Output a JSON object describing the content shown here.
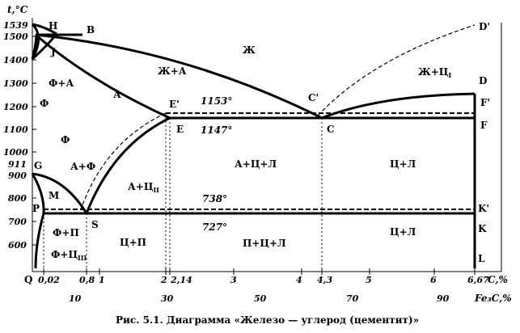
{
  "axis": {
    "t_label": "t,°C",
    "c_label": "C,%",
    "fe3c_label": "Fe₃C,%"
  },
  "temperatures": [
    "1539",
    "1500",
    "1400",
    "1300",
    "1200",
    "1100",
    "1000",
    "911",
    "900",
    "800",
    "700",
    "600"
  ],
  "c_ticks": [
    "0,02",
    "0,8",
    "1",
    "2",
    "2,14",
    "3",
    "4",
    "4,3",
    "5",
    "6",
    "6,67"
  ],
  "fe3c_ticks": [
    "10",
    "30",
    "50",
    "70",
    "90"
  ],
  "points": {
    "H": "H",
    "B": "B",
    "J": "J",
    "D_prime": "D'",
    "D": "D",
    "C_prime": "C'",
    "C": "C",
    "E_prime": "E'",
    "E": "E",
    "F_prime": "F'",
    "F": "F",
    "G": "G",
    "M": "M",
    "P": "P",
    "S": "S",
    "K_prime": "K'",
    "K": "K",
    "L": "L",
    "Q": "Q"
  },
  "regions": {
    "zh": "Ж",
    "zh_a": "Ж+А",
    "zh_c1": "Ж+Ц",
    "zh_c1_sub": "I",
    "f_a": "Ф+А",
    "f_top": "Ф",
    "a": "А",
    "f_mid": "Ф",
    "a_f": "А+Ф",
    "a_c2": "А+Ц",
    "a_c2_sub": "II",
    "a_c_l": "А+Ц+Л",
    "c_l_upper": "Ц+Л",
    "f_p": "Ф+П",
    "f_c3": "Ф+Ц",
    "f_c3_sub": "III",
    "c_p": "Ц+П",
    "p_c_l": "П+Ц+Л",
    "c_l_lower": "Ц+Л"
  },
  "temps_marked": {
    "t1153": "1153°",
    "t1147": "1147°",
    "t738": "738°",
    "t727": "727°"
  },
  "caption": "Рис. 5.1. Диаграмма «Железо — углерод (цементит)»"
}
